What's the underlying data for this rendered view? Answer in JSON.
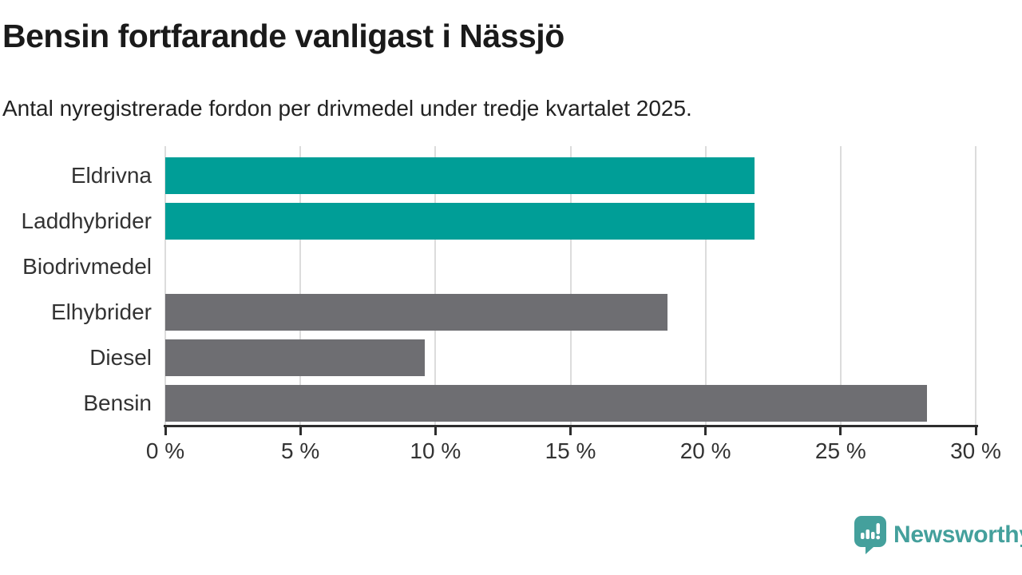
{
  "chart_data": {
    "type": "bar",
    "orientation": "horizontal",
    "title": "Bensin fortfarande vanligast i Nässjö",
    "subtitle": "Antal nyregistrerade fordon per drivmedel under tredje kvartalet 2025.",
    "categories": [
      "Eldrivna",
      "Laddhybrider",
      "Biodrivmedel",
      "Elhybrider",
      "Diesel",
      "Bensin"
    ],
    "values": [
      21.8,
      21.8,
      0,
      18.6,
      9.6,
      28.2
    ],
    "unit": "%",
    "bar_color_keys": [
      "highlight",
      "highlight",
      "none",
      "base",
      "base",
      "base"
    ],
    "xlim": [
      0,
      30
    ],
    "x_ticks": [
      0,
      5,
      10,
      15,
      20,
      25,
      30
    ],
    "x_tick_labels": [
      "0 %",
      "5 %",
      "10 %",
      "15 %",
      "20 %",
      "25 %",
      "30 %"
    ],
    "grid": "vertical",
    "legend": "none",
    "value_labels": "none"
  },
  "colors": {
    "highlight": "#009e97",
    "base": "#6e6e72",
    "gridline": "#dcdcdc",
    "axis": "#2d2d2d",
    "title_text": "#1a1a1a",
    "label_text": "#333333",
    "brand_teal": "#44a09c"
  },
  "footer": {
    "brand": "Newsworthy"
  }
}
